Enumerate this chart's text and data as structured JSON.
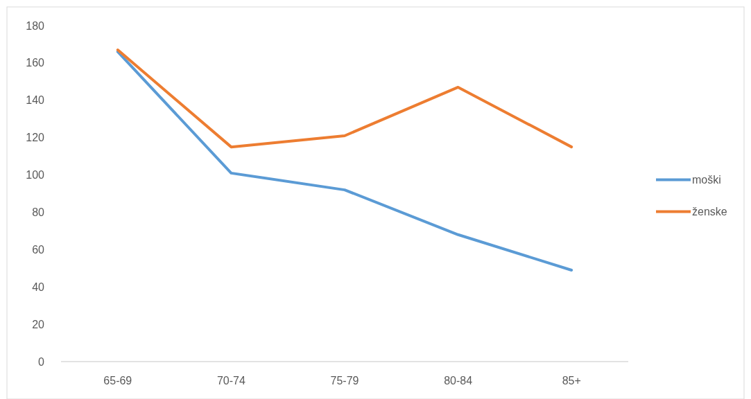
{
  "chart_data": {
    "type": "line",
    "categories": [
      "65-69",
      "70-74",
      "75-79",
      "80-84",
      "85+"
    ],
    "series": [
      {
        "name": "moški",
        "color": "#5b9bd5",
        "values": [
          166,
          101,
          92,
          68,
          49
        ]
      },
      {
        "name": "ženske",
        "color": "#ed7d31",
        "values": [
          167,
          115,
          121,
          147,
          115
        ]
      }
    ],
    "ylim": [
      0,
      180
    ],
    "yticks": [
      0,
      20,
      40,
      60,
      80,
      100,
      120,
      140,
      160,
      180
    ],
    "grid": false,
    "legend": "right",
    "marker": "none",
    "line_style": "solid"
  }
}
